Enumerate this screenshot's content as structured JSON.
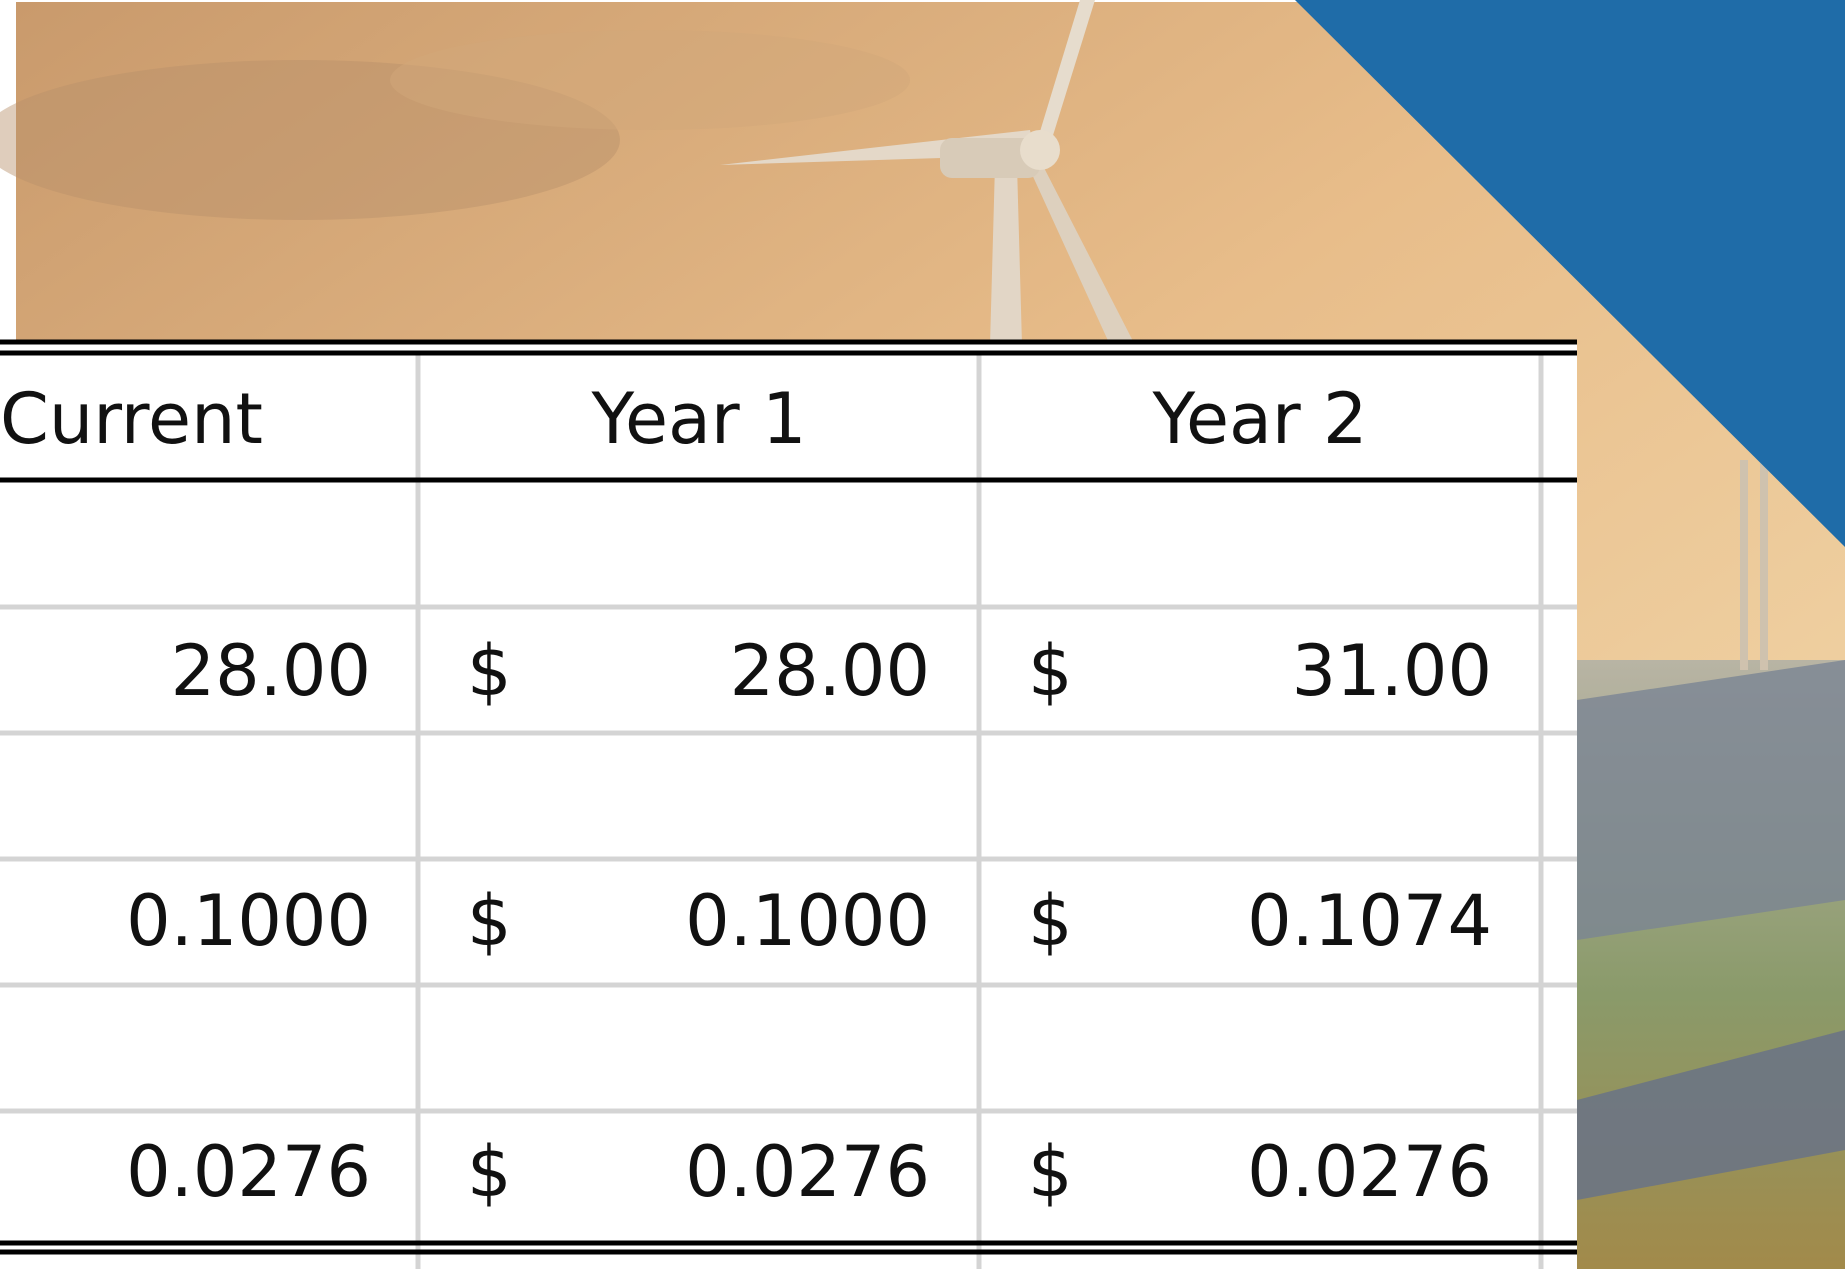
{
  "table": {
    "header": [
      "Current",
      "Year 1",
      "Year 2"
    ],
    "rows": [
      [
        "28.00",
        "$",
        "28.00",
        "$",
        "31.00"
      ],
      [
        "0.1000",
        "$",
        "0.1000",
        "$",
        "0.1074"
      ],
      [
        "0.0276",
        "$",
        "0.0276",
        "$",
        "0.0276"
      ]
    ]
  }
}
